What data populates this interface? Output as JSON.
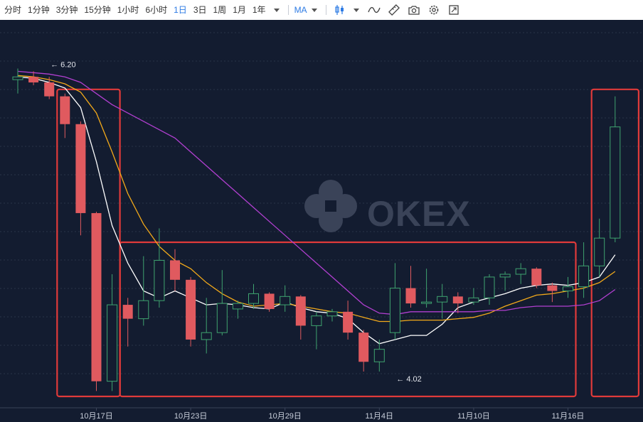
{
  "toolbar": {
    "timeframes": [
      {
        "label": "分时",
        "active": false
      },
      {
        "label": "1分钟",
        "active": false
      },
      {
        "label": "3分钟",
        "active": false
      },
      {
        "label": "15分钟",
        "active": false
      },
      {
        "label": "1小时",
        "active": false
      },
      {
        "label": "6小时",
        "active": false
      },
      {
        "label": "1日",
        "active": true
      },
      {
        "label": "3日",
        "active": false
      },
      {
        "label": "1周",
        "active": false
      },
      {
        "label": "1月",
        "active": false
      },
      {
        "label": "1年",
        "active": false
      }
    ],
    "indicator_label": "MA",
    "tools": [
      "candle-type-icon",
      "line-draw-icon",
      "ruler-icon",
      "camera-icon",
      "settings-icon",
      "fullscreen-icon"
    ]
  },
  "watermark": "OKEX",
  "colors": {
    "background": "#131c30",
    "up": "#3fa36f",
    "down": "#e05a5f",
    "ma_white": "#ffffff",
    "ma_yellow": "#f2a91a",
    "ma_purple": "#b13fd0",
    "highlight_box": "#e03a3a",
    "active_tab": "#2d7be4"
  },
  "chart_data": {
    "type": "candlestick",
    "x_tick_labels": [
      {
        "label": "10月17日",
        "index": 5
      },
      {
        "label": "10月23日",
        "index": 11
      },
      {
        "label": "10月29日",
        "index": 17
      },
      {
        "label": "11月4日",
        "index": 23
      },
      {
        "label": "11月10日",
        "index": 29
      },
      {
        "label": "11月16日",
        "index": 35
      }
    ],
    "y_range": [
      3.8,
      6.55
    ],
    "grid": true,
    "candles": [
      {
        "o": 6.12,
        "h": 6.2,
        "l": 6.02,
        "c": 6.14
      },
      {
        "o": 6.14,
        "h": 6.18,
        "l": 6.08,
        "c": 6.1
      },
      {
        "o": 6.1,
        "h": 6.14,
        "l": 5.98,
        "c": 6.0
      },
      {
        "o": 6.0,
        "h": 6.02,
        "l": 5.7,
        "c": 5.8
      },
      {
        "o": 5.8,
        "h": 5.82,
        "l": 5.0,
        "c": 5.16
      },
      {
        "o": 5.16,
        "h": 5.17,
        "l": 3.88,
        "c": 3.95
      },
      {
        "o": 3.95,
        "h": 4.72,
        "l": 3.88,
        "c": 4.5
      },
      {
        "o": 4.5,
        "h": 4.55,
        "l": 4.2,
        "c": 4.4
      },
      {
        "o": 4.4,
        "h": 4.85,
        "l": 4.35,
        "c": 4.53
      },
      {
        "o": 4.53,
        "h": 5.05,
        "l": 4.48,
        "c": 4.82
      },
      {
        "o": 4.82,
        "h": 4.9,
        "l": 4.6,
        "c": 4.68
      },
      {
        "o": 4.68,
        "h": 4.7,
        "l": 4.2,
        "c": 4.25
      },
      {
        "o": 4.25,
        "h": 4.55,
        "l": 4.15,
        "c": 4.3
      },
      {
        "o": 4.3,
        "h": 4.75,
        "l": 4.28,
        "c": 4.51
      },
      {
        "o": 4.47,
        "h": 4.53,
        "l": 4.4,
        "c": 4.51
      },
      {
        "o": 4.51,
        "h": 4.65,
        "l": 4.47,
        "c": 4.58
      },
      {
        "o": 4.58,
        "h": 4.59,
        "l": 4.45,
        "c": 4.47
      },
      {
        "o": 4.5,
        "h": 4.64,
        "l": 4.45,
        "c": 4.56
      },
      {
        "o": 4.56,
        "h": 4.57,
        "l": 4.25,
        "c": 4.35
      },
      {
        "o": 4.35,
        "h": 4.45,
        "l": 4.18,
        "c": 4.42
      },
      {
        "o": 4.42,
        "h": 4.47,
        "l": 4.38,
        "c": 4.45
      },
      {
        "o": 4.45,
        "h": 4.53,
        "l": 4.25,
        "c": 4.3
      },
      {
        "o": 4.3,
        "h": 4.32,
        "l": 4.02,
        "c": 4.09
      },
      {
        "o": 4.09,
        "h": 4.25,
        "l": 4.02,
        "c": 4.18
      },
      {
        "o": 4.3,
        "h": 4.8,
        "l": 4.25,
        "c": 4.62
      },
      {
        "o": 4.62,
        "h": 4.78,
        "l": 4.48,
        "c": 4.51
      },
      {
        "o": 4.51,
        "h": 4.76,
        "l": 4.48,
        "c": 4.52
      },
      {
        "o": 4.52,
        "h": 4.65,
        "l": 4.4,
        "c": 4.56
      },
      {
        "o": 4.56,
        "h": 4.59,
        "l": 4.44,
        "c": 4.51
      },
      {
        "o": 4.52,
        "h": 4.62,
        "l": 4.5,
        "c": 4.55
      },
      {
        "o": 4.55,
        "h": 4.72,
        "l": 4.5,
        "c": 4.7
      },
      {
        "o": 4.7,
        "h": 4.74,
        "l": 4.6,
        "c": 4.72
      },
      {
        "o": 4.72,
        "h": 4.8,
        "l": 4.65,
        "c": 4.76
      },
      {
        "o": 4.76,
        "h": 4.77,
        "l": 4.62,
        "c": 4.64
      },
      {
        "o": 4.64,
        "h": 4.66,
        "l": 4.52,
        "c": 4.6
      },
      {
        "o": 4.6,
        "h": 4.7,
        "l": 4.55,
        "c": 4.63
      },
      {
        "o": 4.63,
        "h": 4.95,
        "l": 4.55,
        "c": 4.78
      },
      {
        "o": 4.78,
        "h": 5.12,
        "l": 4.7,
        "c": 4.98
      },
      {
        "o": 4.98,
        "h": 6.0,
        "l": 4.95,
        "c": 5.78
      }
    ],
    "ma_lines": [
      {
        "color": "#ffffff",
        "values": [
          6.14,
          6.13,
          6.1,
          6.06,
          5.92,
          5.53,
          5.07,
          4.8,
          4.6,
          4.55,
          4.6,
          4.55,
          4.5,
          4.51,
          4.5,
          4.48,
          4.47,
          4.52,
          4.48,
          4.45,
          4.44,
          4.4,
          4.3,
          4.22,
          4.25,
          4.28,
          4.28,
          4.36,
          4.48,
          4.52,
          4.55,
          4.58,
          4.62,
          4.64,
          4.65,
          4.64,
          4.66,
          4.7,
          4.86
        ]
      },
      {
        "color": "#f2a91a",
        "values": [
          6.15,
          6.14,
          6.12,
          6.09,
          6.03,
          5.88,
          5.6,
          5.3,
          5.08,
          4.92,
          4.82,
          4.76,
          4.66,
          4.58,
          4.52,
          4.49,
          4.5,
          4.51,
          4.49,
          4.47,
          4.45,
          4.44,
          4.41,
          4.38,
          4.38,
          4.39,
          4.39,
          4.39,
          4.4,
          4.41,
          4.44,
          4.49,
          4.53,
          4.57,
          4.58,
          4.6,
          4.62,
          4.66,
          4.74
        ]
      },
      {
        "color": "#b13fd0",
        "values": [
          6.18,
          6.17,
          6.16,
          6.14,
          6.1,
          6.02,
          5.94,
          5.88,
          5.82,
          5.76,
          5.7,
          5.6,
          5.5,
          5.4,
          5.3,
          5.2,
          5.1,
          5.0,
          4.9,
          4.8,
          4.7,
          4.6,
          4.5,
          4.44,
          4.43,
          4.45,
          4.45,
          4.45,
          4.45,
          4.45,
          4.46,
          4.46,
          4.48,
          4.49,
          4.49,
          4.49,
          4.5,
          4.53,
          4.61
        ]
      }
    ],
    "annotations": [
      {
        "text": "← 6.20",
        "index": 1,
        "value": 6.2,
        "kind": "high"
      },
      {
        "text": "← 4.02",
        "index": 23,
        "value": 4.02,
        "kind": "low"
      }
    ],
    "highlight_ranges": [
      {
        "from_index": 3,
        "to_index": 6,
        "value_top": 6.05,
        "value_bottom": 3.8
      },
      {
        "from_index": 7,
        "to_index": 35,
        "value_top": 4.95,
        "value_bottom": 3.8
      },
      {
        "from_index": 37,
        "to_index": 39,
        "value_top": 6.05,
        "value_bottom": 3.8
      }
    ]
  }
}
